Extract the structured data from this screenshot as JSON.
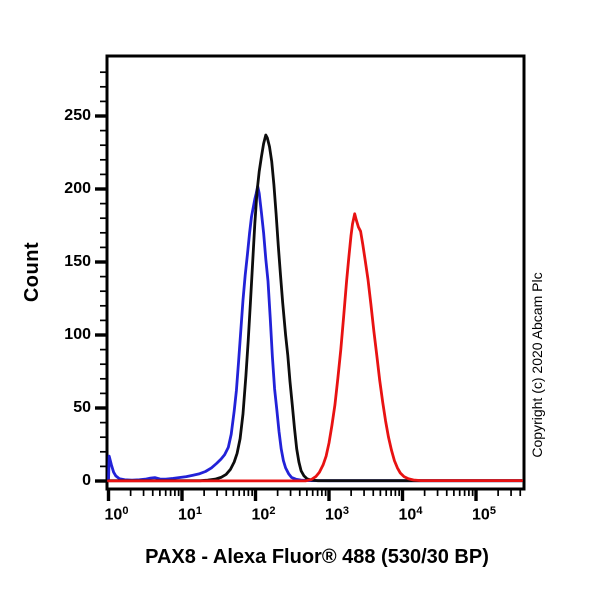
{
  "figure": {
    "xlabel": "PAX8 - Alexa Fluor® 488 (530/30 BP)",
    "ylabel": "Count",
    "copyright": "Copyright (c) 2020 Abcam Plc"
  },
  "chart_data": {
    "type": "line",
    "chart_kind": "flow-cytometry-histogram-overlay",
    "title": "",
    "xlabel": "PAX8 - Alexa Fluor® 488 (530/30 BP)",
    "ylabel": "Count",
    "grid": false,
    "legend": false,
    "x_axis": {
      "scale": "log10",
      "range_log10": [
        0,
        5.64
      ],
      "tick_mantissa": "10",
      "tick_exponents": [
        0,
        1,
        2,
        3,
        4,
        5
      ],
      "minor_tick_multiples": [
        2,
        3,
        4,
        5,
        6,
        7,
        8,
        9
      ]
    },
    "y_axis": {
      "range": [
        0,
        290
      ],
      "major_ticks": [
        0,
        50,
        100,
        150,
        200,
        250
      ],
      "minor_step": 10,
      "minor_max": 280
    },
    "series": [
      {
        "name": "blue",
        "color": "#2222D8",
        "points_log10x_count": [
          [
            0.0,
            0.3
          ],
          [
            0.01,
            17
          ],
          [
            0.04,
            11
          ],
          [
            0.07,
            6
          ],
          [
            0.1,
            3.5
          ],
          [
            0.15,
            1.5
          ],
          [
            0.22,
            0.8
          ],
          [
            0.32,
            0.6
          ],
          [
            0.42,
            0.8
          ],
          [
            0.5,
            1.2
          ],
          [
            0.57,
            2.0
          ],
          [
            0.63,
            2.3
          ],
          [
            0.7,
            1.4
          ],
          [
            0.78,
            1.2
          ],
          [
            0.88,
            1.8
          ],
          [
            0.97,
            2.4
          ],
          [
            1.06,
            3.0
          ],
          [
            1.15,
            4.0
          ],
          [
            1.24,
            5.0
          ],
          [
            1.32,
            6.5
          ],
          [
            1.4,
            9
          ],
          [
            1.47,
            12
          ],
          [
            1.53,
            15
          ],
          [
            1.58,
            18
          ],
          [
            1.63,
            23
          ],
          [
            1.67,
            32
          ],
          [
            1.71,
            48
          ],
          [
            1.74,
            62
          ],
          [
            1.77,
            82
          ],
          [
            1.8,
            103
          ],
          [
            1.83,
            124
          ],
          [
            1.86,
            141
          ],
          [
            1.89,
            155
          ],
          [
            1.92,
            170
          ],
          [
            1.945,
            181
          ],
          [
            1.96,
            185
          ],
          [
            1.99,
            193
          ],
          [
            2.01,
            197
          ],
          [
            2.03,
            202
          ],
          [
            2.05,
            197
          ],
          [
            2.08,
            184
          ],
          [
            2.11,
            170
          ],
          [
            2.14,
            152
          ],
          [
            2.17,
            137
          ],
          [
            2.2,
            112
          ],
          [
            2.23,
            85
          ],
          [
            2.26,
            63
          ],
          [
            2.29,
            49
          ],
          [
            2.32,
            34
          ],
          [
            2.35,
            22
          ],
          [
            2.38,
            14
          ],
          [
            2.41,
            9
          ],
          [
            2.45,
            5
          ],
          [
            2.49,
            2.5
          ],
          [
            2.55,
            1.2
          ],
          [
            2.62,
            0.6
          ],
          [
            2.72,
            0.3
          ],
          [
            3.0,
            0.2
          ],
          [
            5.62,
            0.2
          ]
        ]
      },
      {
        "name": "black",
        "color": "#0d0d0d",
        "points_log10x_count": [
          [
            0.0,
            0.2
          ],
          [
            1.25,
            0.2
          ],
          [
            1.35,
            0.6
          ],
          [
            1.45,
            1.2
          ],
          [
            1.53,
            2.5
          ],
          [
            1.6,
            4.5
          ],
          [
            1.66,
            8
          ],
          [
            1.71,
            13
          ],
          [
            1.75,
            19
          ],
          [
            1.79,
            29
          ],
          [
            1.83,
            46
          ],
          [
            1.87,
            72
          ],
          [
            1.9,
            96
          ],
          [
            1.93,
            122
          ],
          [
            1.96,
            149
          ],
          [
            1.99,
            176
          ],
          [
            2.02,
            198
          ],
          [
            2.05,
            212
          ],
          [
            2.08,
            222
          ],
          [
            2.11,
            231
          ],
          [
            2.14,
            237
          ],
          [
            2.16,
            235
          ],
          [
            2.19,
            229
          ],
          [
            2.22,
            219
          ],
          [
            2.25,
            203
          ],
          [
            2.28,
            183
          ],
          [
            2.31,
            161
          ],
          [
            2.34,
            141
          ],
          [
            2.37,
            122
          ],
          [
            2.41,
            100
          ],
          [
            2.44,
            86
          ],
          [
            2.47,
            68
          ],
          [
            2.5,
            52
          ],
          [
            2.53,
            36
          ],
          [
            2.56,
            22
          ],
          [
            2.59,
            13
          ],
          [
            2.62,
            7
          ],
          [
            2.66,
            3.5
          ],
          [
            2.7,
            1.5
          ],
          [
            2.76,
            0.6
          ],
          [
            2.85,
            0.2
          ],
          [
            5.62,
            0.2
          ]
        ]
      },
      {
        "name": "red",
        "color": "#E81212",
        "points_log10x_count": [
          [
            0.0,
            0.1
          ],
          [
            2.68,
            0.1
          ],
          [
            2.76,
            1
          ],
          [
            2.82,
            3
          ],
          [
            2.87,
            6
          ],
          [
            2.92,
            11
          ],
          [
            2.96,
            17
          ],
          [
            3.0,
            26
          ],
          [
            3.04,
            38
          ],
          [
            3.08,
            52
          ],
          [
            3.12,
            70
          ],
          [
            3.16,
            90
          ],
          [
            3.2,
            113
          ],
          [
            3.24,
            137
          ],
          [
            3.27,
            153
          ],
          [
            3.3,
            168
          ],
          [
            3.32,
            176
          ],
          [
            3.35,
            183
          ],
          [
            3.37,
            179
          ],
          [
            3.4,
            174
          ],
          [
            3.43,
            171
          ],
          [
            3.46,
            162
          ],
          [
            3.49,
            152
          ],
          [
            3.53,
            138
          ],
          [
            3.57,
            121
          ],
          [
            3.61,
            103
          ],
          [
            3.65,
            86
          ],
          [
            3.69,
            69
          ],
          [
            3.73,
            54
          ],
          [
            3.77,
            41
          ],
          [
            3.81,
            30
          ],
          [
            3.85,
            21
          ],
          [
            3.89,
            14
          ],
          [
            3.93,
            9
          ],
          [
            3.97,
            5.5
          ],
          [
            4.02,
            3
          ],
          [
            4.08,
            1.5
          ],
          [
            4.15,
            0.7
          ],
          [
            4.25,
            0.3
          ],
          [
            5.62,
            0.3
          ]
        ]
      }
    ]
  }
}
